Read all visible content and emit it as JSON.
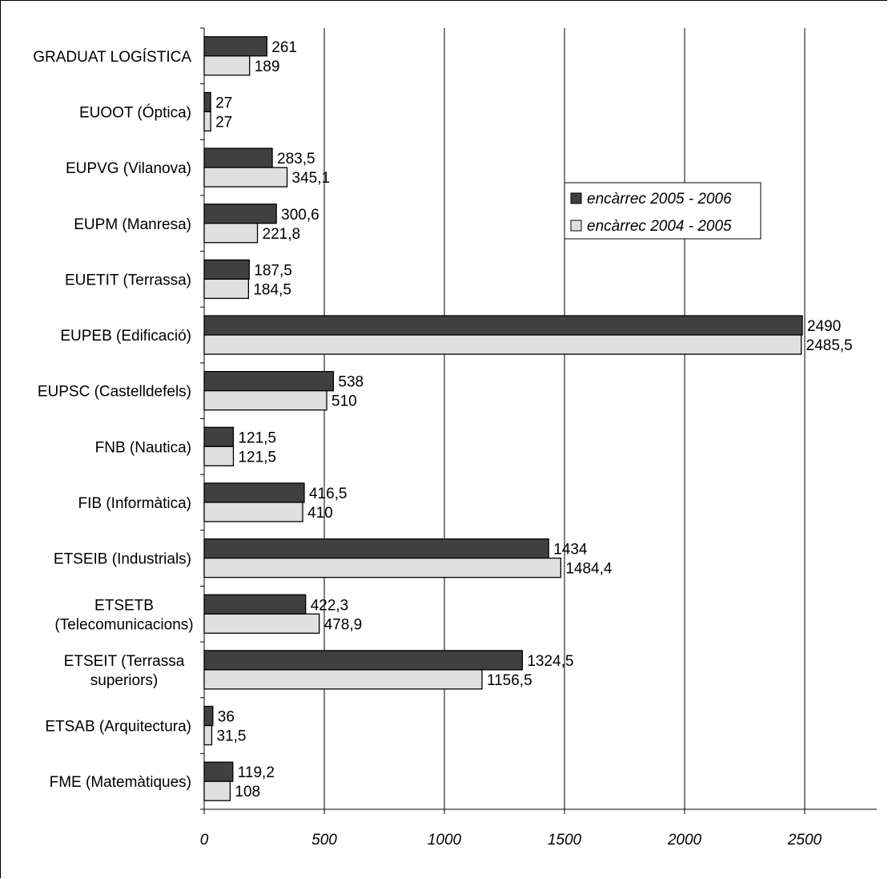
{
  "chart_data": {
    "type": "bar",
    "orientation": "horizontal",
    "title": "",
    "xlabel": "",
    "ylabel": "",
    "xlim": [
      0,
      2800
    ],
    "xticks": [
      0,
      500,
      1000,
      1500,
      2000,
      2500
    ],
    "xtick_labels": [
      "0",
      "500",
      "1000",
      "1500",
      "2000",
      "2500"
    ],
    "grid": "vertical",
    "legend_position": "right",
    "categories": [
      "GRADUAT LOGÍSTICA",
      "EUOOT (Óptica)",
      "EUPVG (Vilanova)",
      "EUPM (Manresa)",
      "EUETIT (Terrassa)",
      "EUPEB (Edificació)",
      "EUPSC (Castelldefels)",
      "FNB (Nautica)",
      "FIB (Informàtica)",
      "ETSEIB (Industrials)",
      "ETSETB (Telecomunicacions)",
      "ETSEIT (Terrassa superiors)",
      "ETSAB (Arquitectura)",
      "FME (Matemàtiques)"
    ],
    "category_lines": [
      [
        "GRADUAT LOGÍSTICA"
      ],
      [
        "EUOOT (Óptica)"
      ],
      [
        "EUPVG (Vilanova)"
      ],
      [
        "EUPM (Manresa)"
      ],
      [
        "EUETIT (Terrassa)"
      ],
      [
        "EUPEB (Edificació)"
      ],
      [
        "EUPSC (Castelldefels)"
      ],
      [
        "FNB (Nautica)"
      ],
      [
        "FIB (Informàtica)"
      ],
      [
        "ETSEIB (Industrials)"
      ],
      [
        "ETSETB",
        "(Telecomunicacions)"
      ],
      [
        "ETSEIT (Terrassa",
        "superiors)"
      ],
      [
        "ETSAB (Arquitectura)"
      ],
      [
        "FME (Matemàtiques)"
      ]
    ],
    "series": [
      {
        "name": "encàrrec 2005 - 2006",
        "color": "#404040",
        "values": [
          261,
          27,
          283.5,
          300.6,
          187.5,
          2490,
          538,
          121.5,
          416.5,
          1434,
          422.3,
          1324.5,
          36,
          119.2
        ],
        "labels": [
          "261",
          "27",
          "283,5",
          "300,6",
          "187,5",
          "2490",
          "538",
          "121,5",
          "416,5",
          "1434",
          "422,3",
          "1324,5",
          "36",
          "119,2"
        ]
      },
      {
        "name": "encàrrec 2004 - 2005",
        "color": "#e0e0e0",
        "values": [
          189,
          27,
          345.1,
          221.8,
          184.5,
          2485.5,
          510,
          121.5,
          410,
          1484.4,
          478.9,
          1156.5,
          31.5,
          108
        ],
        "labels": [
          "189",
          "27",
          "345,1",
          "221,8",
          "184,5",
          "2485,5",
          "510",
          "121,5",
          "410",
          "1484,4",
          "478,9",
          "1156,5",
          "31,5",
          "108"
        ]
      }
    ]
  }
}
